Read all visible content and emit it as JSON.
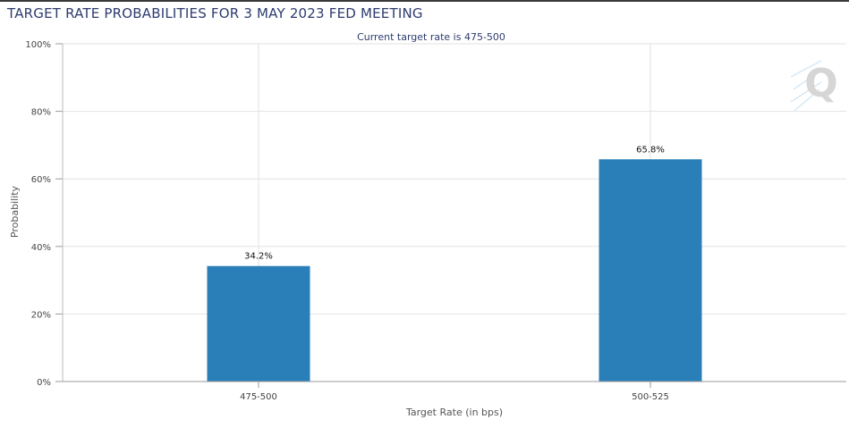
{
  "title": "TARGET RATE PROBABILITIES FOR 3 MAY 2023 FED MEETING",
  "colors": {
    "bar": "#2a7fb8",
    "title": "#2d3b6e",
    "grid": "#e2e2e2",
    "axis_text": "#444444"
  },
  "watermark": {
    "icon": "q-logo-icon",
    "text": "Q"
  },
  "chart_data": {
    "type": "bar",
    "title": "Current target rate is 475-500",
    "xlabel": "Target Rate (in bps)",
    "ylabel": "Probability",
    "categories": [
      "475-500",
      "500-525"
    ],
    "values": [
      34.2,
      65.8
    ],
    "data_labels": [
      "34.2%",
      "65.8%"
    ],
    "ylim": [
      0,
      100
    ],
    "yticks": [
      "0%",
      "20%",
      "40%",
      "60%",
      "80%",
      "100%"
    ],
    "grid": true,
    "legend": "none"
  }
}
